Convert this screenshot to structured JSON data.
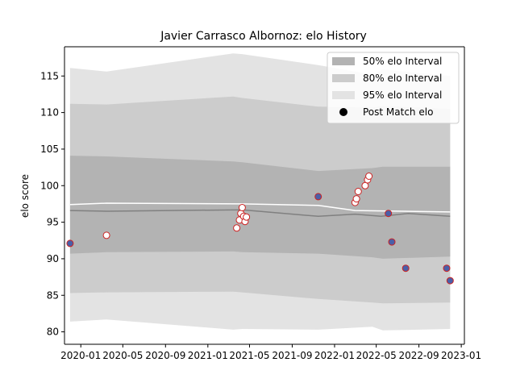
{
  "chart_data": {
    "type": "line",
    "title": "Javier Carrasco Albornoz: elo History",
    "xlabel": "",
    "ylabel": "elo score",
    "x_is_date": true,
    "xlim": [
      "2019-11-15",
      "2023-01-10"
    ],
    "ylim": [
      78.3,
      119.0
    ],
    "x_ticks": [
      {
        "date": "2020-01-01",
        "label": "2020-01"
      },
      {
        "date": "2020-05-01",
        "label": "2020-05"
      },
      {
        "date": "2020-09-01",
        "label": "2020-09"
      },
      {
        "date": "2021-01-01",
        "label": "2021-01"
      },
      {
        "date": "2021-05-01",
        "label": "2021-05"
      },
      {
        "date": "2021-09-01",
        "label": "2021-09"
      },
      {
        "date": "2022-01-01",
        "label": "2022-01"
      },
      {
        "date": "2022-05-01",
        "label": "2022-05"
      },
      {
        "date": "2022-09-01",
        "label": "2022-09"
      },
      {
        "date": "2023-01-01",
        "label": "2023-01"
      }
    ],
    "y_ticks": [
      80,
      85,
      90,
      95,
      100,
      105,
      110,
      115
    ],
    "grid": false,
    "legend_position": "top-right",
    "legend": [
      {
        "label": "50% elo Interval",
        "kind": "band",
        "color": "#b3b3b3"
      },
      {
        "label": "80% elo Interval",
        "kind": "band",
        "color": "#cccccc"
      },
      {
        "label": "95% elo Interval",
        "kind": "band",
        "color": "#e3e3e3"
      },
      {
        "label": "Post Match elo",
        "kind": "marker",
        "color": "#000000"
      }
    ],
    "series": [
      {
        "name": "95% elo Interval",
        "kind": "band",
        "color": "#e3e3e3",
        "points": [
          {
            "x": "2019-12-01",
            "lo": 81.4,
            "hi": 116.1
          },
          {
            "x": "2020-03-15",
            "lo": 81.7,
            "hi": 115.6
          },
          {
            "x": "2021-03-15",
            "lo": 80.3,
            "hi": 118.1
          },
          {
            "x": "2021-04-10",
            "lo": 80.4,
            "hi": 118.0
          },
          {
            "x": "2021-11-15",
            "lo": 80.3,
            "hi": 116.5
          },
          {
            "x": "2022-04-20",
            "lo": 80.7,
            "hi": 115.2
          },
          {
            "x": "2022-05-20",
            "lo": 80.2,
            "hi": 115.9
          },
          {
            "x": "2022-11-30",
            "lo": 80.4,
            "hi": 115.0
          }
        ]
      },
      {
        "name": "80% elo Interval",
        "kind": "band",
        "color": "#cccccc",
        "points": [
          {
            "x": "2019-12-01",
            "lo": 85.3,
            "hi": 111.2
          },
          {
            "x": "2020-03-15",
            "lo": 85.4,
            "hi": 111.1
          },
          {
            "x": "2021-03-15",
            "lo": 85.5,
            "hi": 112.2
          },
          {
            "x": "2021-04-10",
            "lo": 85.4,
            "hi": 112.0
          },
          {
            "x": "2021-11-15",
            "lo": 84.5,
            "hi": 110.8
          },
          {
            "x": "2022-04-20",
            "lo": 84.0,
            "hi": 110.7
          },
          {
            "x": "2022-05-20",
            "lo": 83.9,
            "hi": 110.9
          },
          {
            "x": "2022-11-30",
            "lo": 84.0,
            "hi": 110.5
          }
        ]
      },
      {
        "name": "50% elo Interval",
        "kind": "band",
        "color": "#b3b3b3",
        "points": [
          {
            "x": "2019-12-01",
            "lo": 90.7,
            "hi": 104.1
          },
          {
            "x": "2020-03-15",
            "lo": 90.9,
            "hi": 104.0
          },
          {
            "x": "2021-03-15",
            "lo": 91.0,
            "hi": 103.3
          },
          {
            "x": "2021-04-10",
            "lo": 90.9,
            "hi": 103.2
          },
          {
            "x": "2021-11-15",
            "lo": 90.7,
            "hi": 102.0
          },
          {
            "x": "2022-04-20",
            "lo": 90.2,
            "hi": 102.4
          },
          {
            "x": "2022-05-20",
            "lo": 90.0,
            "hi": 102.6
          },
          {
            "x": "2022-11-30",
            "lo": 90.3,
            "hi": 102.6
          }
        ]
      },
      {
        "name": "",
        "kind": "line",
        "color": "#808080",
        "points": [
          {
            "x": "2019-12-01",
            "y": 96.6
          },
          {
            "x": "2020-03-15",
            "y": 96.5
          },
          {
            "x": "2021-04-10",
            "y": 96.7
          },
          {
            "x": "2021-11-15",
            "y": 95.8
          },
          {
            "x": "2022-03-01",
            "y": 96.1
          },
          {
            "x": "2022-05-15",
            "y": 95.8
          },
          {
            "x": "2022-08-01",
            "y": 96.2
          },
          {
            "x": "2022-11-30",
            "y": 95.8
          }
        ]
      },
      {
        "name": "",
        "kind": "line",
        "color": "#ffffff",
        "points": [
          {
            "x": "2019-12-01",
            "y": 97.4
          },
          {
            "x": "2020-03-15",
            "y": 97.6
          },
          {
            "x": "2021-04-10",
            "y": 97.5
          },
          {
            "x": "2021-11-15",
            "y": 97.3
          },
          {
            "x": "2022-03-01",
            "y": 96.6
          },
          {
            "x": "2022-11-30",
            "y": 96.4
          }
        ]
      },
      {
        "name": "Post Match elo (blue)",
        "kind": "points",
        "fill": "#4a5fa8",
        "stroke": "#cc2222",
        "points": [
          {
            "x": "2019-12-01",
            "y": 92.1
          },
          {
            "x": "2021-11-15",
            "y": 98.5
          },
          {
            "x": "2022-06-05",
            "y": 96.2
          },
          {
            "x": "2022-06-15",
            "y": 92.3
          },
          {
            "x": "2022-07-25",
            "y": 88.7
          },
          {
            "x": "2022-11-20",
            "y": 88.7
          },
          {
            "x": "2022-11-30",
            "y": 87.0
          }
        ]
      },
      {
        "name": "Post Match elo (white)",
        "kind": "points",
        "fill": "#ffffff",
        "stroke": "#cc2222",
        "points": [
          {
            "x": "2020-03-15",
            "y": 93.2
          },
          {
            "x": "2021-03-25",
            "y": 94.2
          },
          {
            "x": "2021-04-02",
            "y": 95.3
          },
          {
            "x": "2021-04-06",
            "y": 96.2
          },
          {
            "x": "2021-04-10",
            "y": 97.0
          },
          {
            "x": "2021-04-14",
            "y": 95.8
          },
          {
            "x": "2021-04-18",
            "y": 95.1
          },
          {
            "x": "2021-04-22",
            "y": 95.7
          },
          {
            "x": "2022-03-01",
            "y": 97.7
          },
          {
            "x": "2022-03-05",
            "y": 98.2
          },
          {
            "x": "2022-03-10",
            "y": 99.2
          },
          {
            "x": "2022-03-30",
            "y": 100.0
          },
          {
            "x": "2022-04-06",
            "y": 100.8
          },
          {
            "x": "2022-04-10",
            "y": 101.3
          }
        ]
      }
    ]
  }
}
